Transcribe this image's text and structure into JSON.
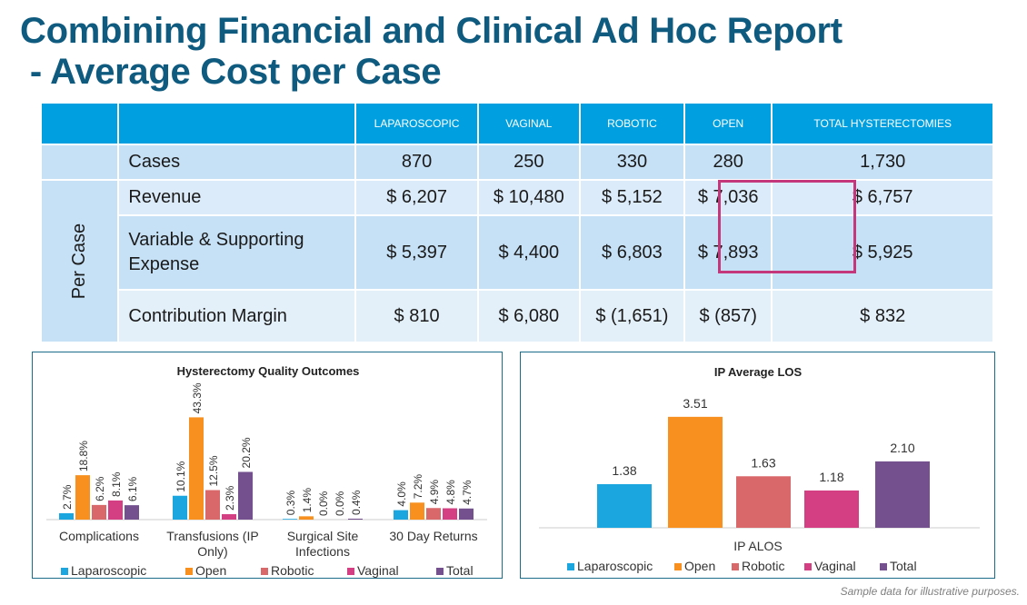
{
  "title": {
    "line1": "Combining Financial and Clinical Ad Hoc Report",
    "line2": " - Average Cost per Case"
  },
  "table": {
    "columns": [
      "LAPAROSCOPIC",
      "VAGINAL",
      "ROBOTIC",
      "OPEN",
      "TOTAL HYSTERECTOMIES"
    ],
    "group_label": "Per Case",
    "rows": [
      {
        "label": "Cases",
        "values": [
          "870",
          "250",
          "330",
          "280",
          "1,730"
        ]
      },
      {
        "label": "Revenue",
        "values": [
          "$ 6,207",
          "$ 10,480",
          "$ 5,152",
          "$ 7,036",
          "$ 6,757"
        ]
      },
      {
        "label": "Variable & Supporting Expense",
        "values": [
          "$ 5,397",
          "$ 4,400",
          "$ 6,803",
          "$ 7,893",
          "$ 5,925"
        ]
      },
      {
        "label": "Contribution Margin",
        "values": [
          "$ 810",
          "$ 6,080",
          "$ (1,651)",
          "$ (857)",
          "$ 832"
        ]
      }
    ],
    "highlight_color": "#c4377a"
  },
  "colors": {
    "Laparoscopic": "#1ba6e0",
    "Open": "#f7901e",
    "Robotic": "#d9686b",
    "Vaginal": "#d43f83",
    "Total": "#74508f",
    "title": "#0f5a7f",
    "header": "#00a0e0"
  },
  "chart_data": [
    {
      "type": "bar",
      "title": "Hysterectomy Quality Outcomes",
      "categories": [
        "Complications",
        "Transfusions (IP Only)",
        "Surgical Site Infections",
        "30 Day Returns"
      ],
      "category_lines": [
        [
          "Complications"
        ],
        [
          "Transfusions (IP",
          "Only)"
        ],
        [
          "Surgical Site",
          "Infections"
        ],
        [
          "30 Day Returns"
        ]
      ],
      "series": [
        {
          "name": "Laparoscopic",
          "values": [
            2.7,
            10.1,
            0.3,
            4.0
          ],
          "labels": [
            "2.7%",
            "10.1%",
            "0.3%",
            "4.0%"
          ]
        },
        {
          "name": "Open",
          "values": [
            18.8,
            43.3,
            1.4,
            7.2
          ],
          "labels": [
            "18.8%",
            "43.3%",
            "1.4%",
            "7.2%"
          ]
        },
        {
          "name": "Robotic",
          "values": [
            6.2,
            12.5,
            0.0,
            4.9
          ],
          "labels": [
            "6.2%",
            "12.5%",
            "0.0%",
            "4.9%"
          ]
        },
        {
          "name": "Vaginal",
          "values": [
            8.1,
            2.3,
            0.0,
            4.8
          ],
          "labels": [
            "8.1%",
            "2.3%",
            "0.0%",
            "4.8%"
          ]
        },
        {
          "name": "Total",
          "values": [
            6.1,
            20.2,
            0.4,
            4.7
          ],
          "labels": [
            "6.1%",
            "20.2%",
            "0.4%",
            "4.7%"
          ]
        }
      ],
      "legend": "bottom",
      "grid": false,
      "unit": "%"
    },
    {
      "type": "bar",
      "title": "IP Average LOS",
      "xlabel": "IP ALOS",
      "categories": [
        "Laparoscopic",
        "Open",
        "Robotic",
        "Vaginal",
        "Total"
      ],
      "values": [
        1.38,
        3.51,
        1.63,
        1.18,
        2.1
      ],
      "labels": [
        "1.38",
        "3.51",
        "1.63",
        "1.18",
        "2.10"
      ],
      "legend": "bottom",
      "grid": false
    }
  ],
  "footer": "Sample data for illustrative purposes."
}
